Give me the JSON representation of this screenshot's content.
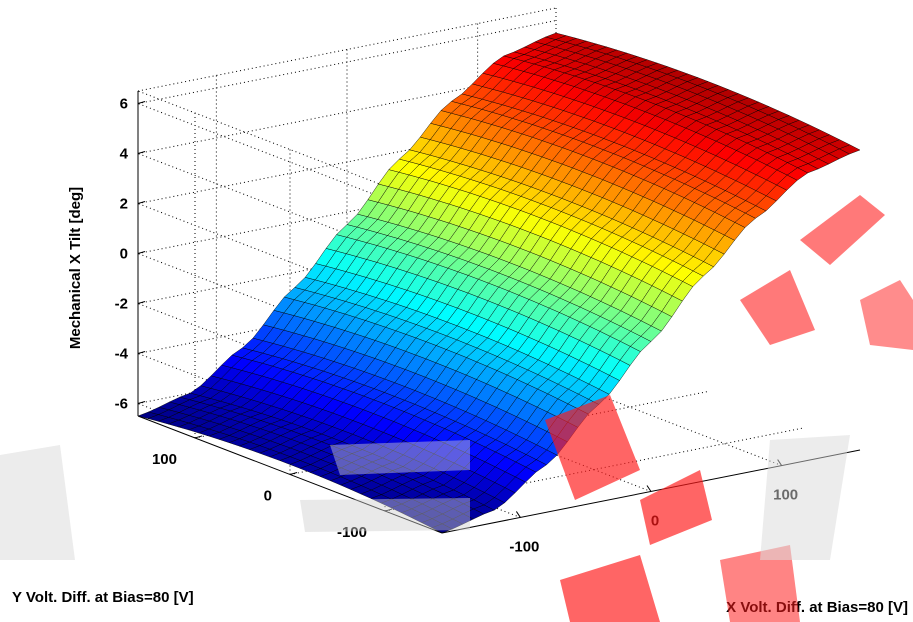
{
  "chart_data": {
    "type": "surface",
    "title": "",
    "xlabel": "X Volt. Diff. at Bias=80 [V]",
    "ylabel": "Y Volt. Diff. at Bias=80 [V]",
    "zlabel": "Mechanical X Tilt [deg]",
    "xlim": [
      -160,
      160
    ],
    "ylim": [
      -160,
      160
    ],
    "zlim": [
      -6.5,
      6.5
    ],
    "x_ticks": [
      -100,
      0,
      100
    ],
    "y_ticks": [
      -100,
      0,
      100
    ],
    "z_ticks": [
      -6,
      -4,
      -2,
      0,
      2,
      4,
      6
    ],
    "x_tick_labels": [
      "-100",
      "0",
      "100"
    ],
    "y_tick_labels": [
      "-100",
      "0",
      "100"
    ],
    "z_tick_labels": [
      "-6",
      "-4",
      "-2",
      "0",
      "2",
      "4",
      "6"
    ],
    "grid": true,
    "colormap": "jet",
    "surface": {
      "x_range": [
        -160,
        160
      ],
      "y_range": [
        -160,
        160
      ],
      "samples_x": 41,
      "samples_y": 31,
      "z_at_x_min": -6.1,
      "z_at_x_max": 5.9,
      "z_profile_x": [
        -160,
        -120,
        -80,
        -40,
        0,
        40,
        80,
        120,
        160
      ],
      "z_profile_values": [
        -6.1,
        -5.6,
        -4.2,
        -2.2,
        -0.1,
        2.1,
        4.0,
        5.4,
        5.9
      ],
      "y_curvature_deg": 0.4
    },
    "colors": {
      "grid": "#000000",
      "edge": "#000000",
      "background": "#ffffff"
    }
  },
  "watermark": {
    "colors": [
      "#ff0000",
      "#dcdcdc"
    ]
  }
}
